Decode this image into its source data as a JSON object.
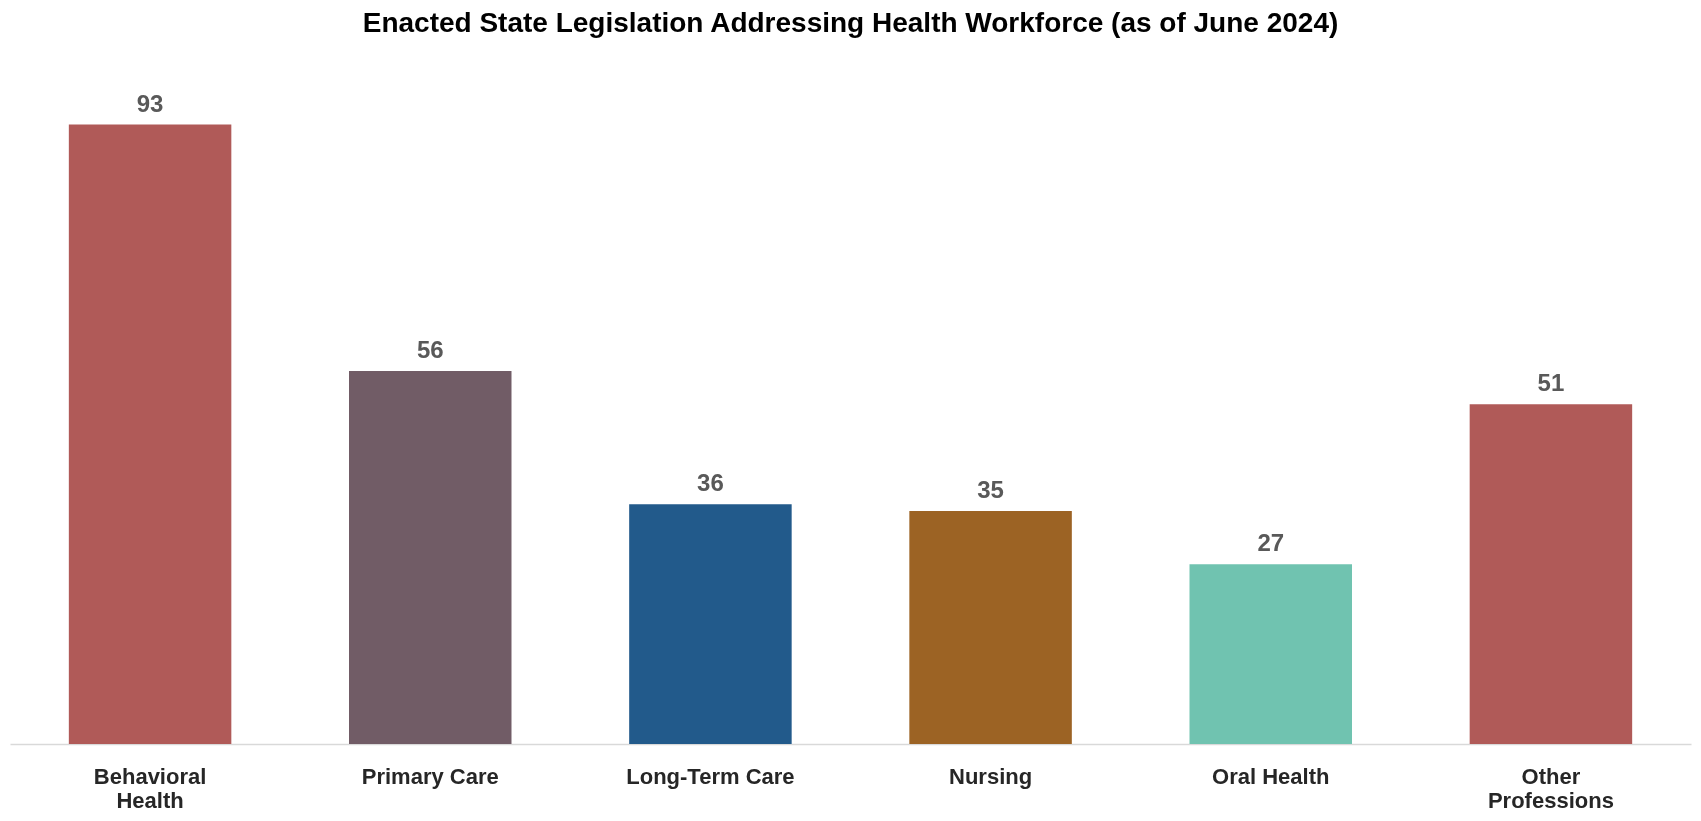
{
  "chart_data": {
    "type": "bar",
    "title": "Enacted State Legislation Addressing Health Workforce (as of June 2024)",
    "categories": [
      "Behavioral Health",
      "Primary Care",
      "Long-Term Care",
      "Nursing",
      "Oral Health",
      "Other Professions"
    ],
    "values": [
      93,
      56,
      36,
      35,
      27,
      51
    ],
    "colors": [
      "#b05a58",
      "#715c66",
      "#225a8b",
      "#9c6324",
      "#70c3b0",
      "#b05a58"
    ],
    "data_labels": true,
    "tick_labels": "x"
  }
}
